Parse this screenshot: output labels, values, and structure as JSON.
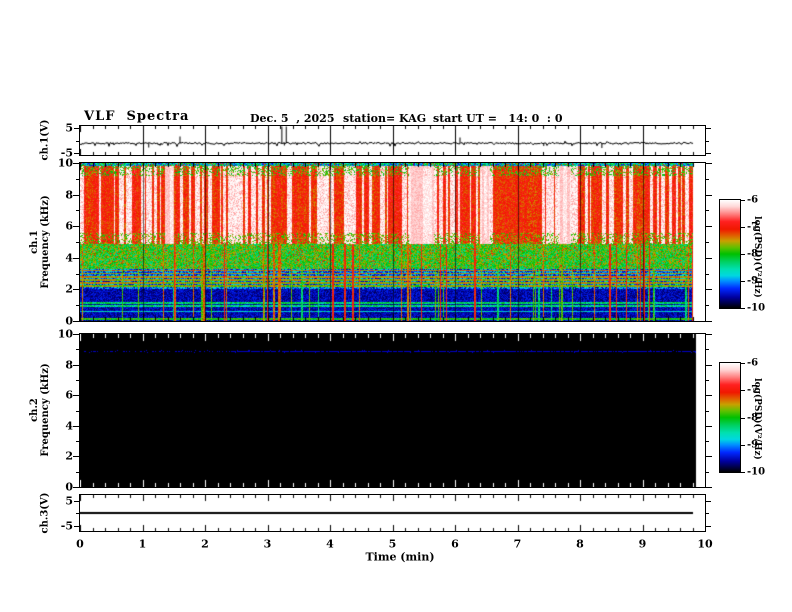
{
  "title": {
    "main": "VLF  Spectra",
    "date": "Dec. 5  , 2025",
    "station": "station= KAG",
    "start_ut": "start UT =   14: 0  : 0"
  },
  "x_axis": {
    "label": "Time (min)",
    "ticks": [
      0,
      1,
      2,
      3,
      4,
      5,
      6,
      7,
      8,
      9,
      10
    ],
    "minor_tick_min": 0.2,
    "range_min": [
      0,
      10
    ]
  },
  "panels": {
    "ch1_voltage": {
      "ylabel": "ch.1(V)",
      "yticks": [
        "5",
        "-5"
      ],
      "ytick_values": [
        5,
        -5
      ]
    },
    "ch1_spectrogram": {
      "ylabel_line1": "ch.1",
      "ylabel_line2": "Frequency (kHz)",
      "yticks": [
        10,
        8,
        6,
        4,
        2,
        0
      ]
    },
    "ch2_spectrogram": {
      "ylabel_line1": "ch.2",
      "ylabel_line2": "Frequency (kHz)",
      "yticks": [
        10,
        8,
        6,
        4,
        2,
        0
      ]
    },
    "ch3_voltage": {
      "ylabel": "ch.3(V)",
      "yticks": [
        "5",
        "-5"
      ],
      "ytick_values": [
        5,
        -5
      ]
    }
  },
  "colorbar": {
    "label": "log(PSD)(V²/Hz)",
    "ticks": [
      -6,
      -7,
      -8,
      -9,
      -10
    ],
    "gradient": [
      [
        0,
        "#ffffff"
      ],
      [
        0.06,
        "#ffd8d8"
      ],
      [
        0.13,
        "#ff8080"
      ],
      [
        0.2,
        "#ff2020"
      ],
      [
        0.27,
        "#f01800"
      ],
      [
        0.33,
        "#e06000"
      ],
      [
        0.38,
        "#c8a000"
      ],
      [
        0.44,
        "#60c000"
      ],
      [
        0.5,
        "#00c000"
      ],
      [
        0.57,
        "#00d060"
      ],
      [
        0.64,
        "#00e0b0"
      ],
      [
        0.7,
        "#00d8e0"
      ],
      [
        0.75,
        "#0090ff"
      ],
      [
        0.82,
        "#0028ff"
      ],
      [
        0.9,
        "#0000a0"
      ],
      [
        1,
        "#000000"
      ]
    ]
  },
  "chart_data": [
    {
      "type": "line",
      "name": "ch1_voltage_waveform",
      "ylabel": "ch.1(V)",
      "y_ticks": [
        5,
        -5
      ],
      "time_range_min": [
        0,
        9.8
      ],
      "baseline_v": -1.1,
      "noise_amp_v": 0.7,
      "spikes": [
        {
          "t_min": 1.1,
          "v": -2.8
        },
        {
          "t_min": 1.6,
          "v": 1.6
        },
        {
          "t_min": 3.23,
          "v": 5.6
        },
        {
          "t_min": 3.27,
          "v": -2.0
        },
        {
          "t_min": 3.3,
          "v": 5.6
        },
        {
          "t_min": 4.45,
          "v": -1.4
        },
        {
          "t_min": 5.63,
          "v": -1.3
        },
        {
          "t_min": 6.08,
          "v": 1.2
        },
        {
          "t_min": 7.42,
          "v": -2.2
        },
        {
          "t_min": 8.35,
          "v": -3.0
        }
      ],
      "grid_lines_min": [
        1,
        2,
        3,
        4,
        5,
        6,
        7,
        8,
        9
      ]
    },
    {
      "type": "heatmap",
      "name": "ch1_spectrogram",
      "freq_range_khz": [
        0,
        10
      ],
      "time_range_min": [
        0,
        9.8
      ],
      "psd_log_range": [
        -10,
        -6
      ],
      "bands": [
        {
          "f_lo": 9.78,
          "f_hi": 10,
          "psd_log_mean": -8.6,
          "desc": "blue/green/cyan speckled top edge"
        },
        {
          "f_lo": 4.9,
          "f_hi": 9.78,
          "psd_log_mean": -6.7,
          "desc": "saturated red/white vertical striping"
        },
        {
          "f_lo": 3.3,
          "f_hi": 4.9,
          "psd_log_mean": -7.95,
          "desc": "green/yellow speckle"
        },
        {
          "f_lo": 2.05,
          "f_hi": 3.3,
          "psd_log_mean": -9.1,
          "desc": "dark blue speckle"
        },
        {
          "f_lo": 0,
          "f_hi": 2.05,
          "psd_log_mean": -9.75,
          "desc": "near-black background"
        }
      ],
      "emission_lines": [
        {
          "f": 3.2,
          "psd": -7.4
        },
        {
          "f": 3.0,
          "psd": -7.5
        },
        {
          "f": 2.8,
          "psd": -7.5
        },
        {
          "f": 2.6,
          "psd": -7.6
        },
        {
          "f": 2.4,
          "psd": -7.6
        },
        {
          "f": 2.2,
          "psd": -7.7
        },
        {
          "f": 1.15,
          "psd": -8.3
        },
        {
          "f": 0.95,
          "psd": -8.4
        },
        {
          "f": 0.6,
          "psd": -8.7
        },
        {
          "f": 0.12,
          "psd": -8.0
        }
      ],
      "bright_patches_min": [
        [
          1.35,
          1.5
        ],
        [
          5.25,
          5.65
        ],
        [
          6.4,
          6.55
        ],
        [
          7.65,
          7.85
        ]
      ],
      "broadband_streaks": {
        "count_approx": 55,
        "extent_khz": [
          0,
          4.9
        ]
      },
      "grid_lines_min": [
        1,
        2,
        3,
        4,
        5,
        6,
        7,
        8,
        9
      ]
    },
    {
      "type": "heatmap",
      "name": "ch2_spectrogram",
      "freq_range_khz": [
        0,
        10
      ],
      "time_range_min": [
        0,
        9.85
      ],
      "psd_log_range": [
        -10,
        -6
      ],
      "background_psd_log": -10,
      "lines": [
        {
          "f_khz": 8.9,
          "t_start_min": 0.05,
          "t_end_min": 9.85,
          "style": "dotted",
          "color": "#0000c8",
          "sparse_before_min": 2.4
        }
      ]
    },
    {
      "type": "line",
      "name": "ch3_voltage_waveform",
      "ylabel": "ch.3(V)",
      "y_ticks": [
        5,
        -5
      ],
      "time_range_min": [
        0,
        9.8
      ],
      "constant_v": 0.0
    }
  ]
}
